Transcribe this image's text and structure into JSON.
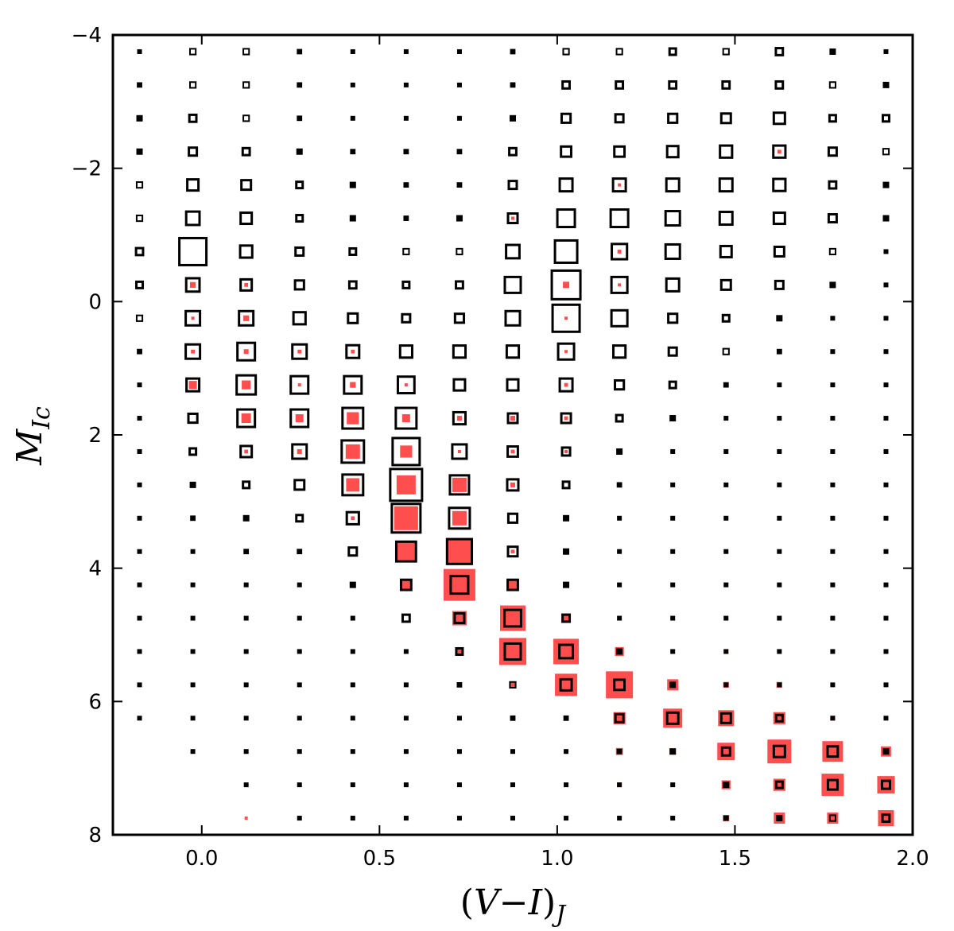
{
  "chart_data": {
    "type": "scatter",
    "subtype": "binned-square-hess-diagram",
    "title": "",
    "xlabel": {
      "open": "(",
      "var1": "V",
      "minus": "−",
      "var2": "I",
      "close": ")",
      "sub": "J"
    },
    "ylabel": {
      "main": "M",
      "sub": "Ic"
    },
    "xlim": [
      -0.25,
      2.0
    ],
    "ylim": [
      8,
      -4
    ],
    "y_inverted": true,
    "grid": false,
    "x_ticks": [
      0.0,
      0.5,
      1.0,
      1.5,
      2.0
    ],
    "x_tick_labels": [
      "0.0",
      "0.5",
      "1.0",
      "1.5",
      "2.0"
    ],
    "y_ticks": [
      -4,
      -2,
      0,
      2,
      4,
      6,
      8
    ],
    "y_tick_labels": [
      "−4",
      "−2",
      "0",
      "2",
      "4",
      "6",
      "8"
    ],
    "bin_centers_x": [
      -0.175,
      -0.025,
      0.125,
      0.275,
      0.425,
      0.575,
      0.725,
      0.875,
      1.025,
      1.175,
      1.325,
      1.475,
      1.625,
      1.775,
      1.925
    ],
    "bin_centers_y": [
      -3.75,
      -3.25,
      -2.75,
      -2.25,
      -1.75,
      -1.25,
      -0.75,
      -0.25,
      0.25,
      0.75,
      1.25,
      1.75,
      2.25,
      2.75,
      3.25,
      3.75,
      4.25,
      4.75,
      5.25,
      5.75,
      6.25,
      6.75,
      7.25,
      7.75
    ],
    "series": [
      {
        "name": "black (open squares)",
        "color": "#000000",
        "style": "open-square",
        "size_scale": "0 to 1 relative square size",
        "grid": [
          [
            0.1,
            0.18,
            0.18,
            0.12,
            0.1,
            0.1,
            0.08,
            0.12,
            0.18,
            0.18,
            0.2,
            0.18,
            0.22,
            0.15,
            0.1
          ],
          [
            0.12,
            0.18,
            0.18,
            0.12,
            0.1,
            0.08,
            0.08,
            0.12,
            0.22,
            0.22,
            0.22,
            0.22,
            0.22,
            0.18,
            0.15
          ],
          [
            0.15,
            0.22,
            0.18,
            0.12,
            0.1,
            0.1,
            0.1,
            0.15,
            0.28,
            0.25,
            0.28,
            0.3,
            0.35,
            0.2,
            0.2
          ],
          [
            0.15,
            0.25,
            0.22,
            0.15,
            0.12,
            0.12,
            0.12,
            0.22,
            0.32,
            0.32,
            0.35,
            0.38,
            0.38,
            0.25,
            0.18
          ],
          [
            0.18,
            0.35,
            0.3,
            0.2,
            0.15,
            0.12,
            0.12,
            0.25,
            0.4,
            0.4,
            0.4,
            0.4,
            0.38,
            0.22,
            0.15
          ],
          [
            0.18,
            0.42,
            0.35,
            0.2,
            0.15,
            0.12,
            0.15,
            0.3,
            0.55,
            0.55,
            0.45,
            0.4,
            0.35,
            0.25,
            0.15
          ],
          [
            0.22,
            0.85,
            0.38,
            0.25,
            0.2,
            0.18,
            0.18,
            0.42,
            0.7,
            0.48,
            0.45,
            0.35,
            0.3,
            0.18,
            0.1
          ],
          [
            0.2,
            0.42,
            0.35,
            0.28,
            0.22,
            0.2,
            0.22,
            0.5,
            0.9,
            0.5,
            0.4,
            0.3,
            0.25,
            0.15,
            0.1
          ],
          [
            0.18,
            0.45,
            0.45,
            0.38,
            0.3,
            0.25,
            0.28,
            0.45,
            0.85,
            0.5,
            0.28,
            0.2,
            0.15,
            0.1,
            0.08
          ],
          [
            0.12,
            0.45,
            0.55,
            0.45,
            0.4,
            0.38,
            0.38,
            0.38,
            0.5,
            0.38,
            0.25,
            0.18,
            0.12,
            0.08,
            0.06
          ],
          [
            0.08,
            0.4,
            0.6,
            0.55,
            0.55,
            0.52,
            0.35,
            0.35,
            0.4,
            0.28,
            0.2,
            0.12,
            0.08,
            0.06,
            0.05
          ],
          [
            0.08,
            0.28,
            0.55,
            0.55,
            0.65,
            0.65,
            0.38,
            0.3,
            0.3,
            0.2,
            0.15,
            0.1,
            0.08,
            0.06,
            0.05
          ],
          [
            0.08,
            0.2,
            0.35,
            0.45,
            0.7,
            0.85,
            0.45,
            0.32,
            0.25,
            0.15,
            0.1,
            0.08,
            0.06,
            0.05,
            0.04
          ],
          [
            0.08,
            0.15,
            0.2,
            0.3,
            0.65,
            1.0,
            0.6,
            0.35,
            0.2,
            0.12,
            0.08,
            0.06,
            0.05,
            0.04,
            0.04
          ],
          [
            0.06,
            0.12,
            0.15,
            0.2,
            0.38,
            0.9,
            0.65,
            0.28,
            0.15,
            0.1,
            0.08,
            0.06,
            0.05,
            0.04,
            0.04
          ],
          [
            0.06,
            0.1,
            0.12,
            0.12,
            0.25,
            0.62,
            0.78,
            0.3,
            0.15,
            0.1,
            0.08,
            0.06,
            0.05,
            0.04,
            0.04
          ],
          [
            0.04,
            0.08,
            0.1,
            0.1,
            0.15,
            0.32,
            0.55,
            0.32,
            0.15,
            0.1,
            0.08,
            0.06,
            0.05,
            0.04,
            0.04
          ],
          [
            0.06,
            0.08,
            0.08,
            0.08,
            0.1,
            0.22,
            0.3,
            0.52,
            0.22,
            0.1,
            0.08,
            0.06,
            0.05,
            0.04,
            0.04
          ],
          [
            0.04,
            0.06,
            0.06,
            0.06,
            0.08,
            0.1,
            0.2,
            0.5,
            0.42,
            0.15,
            0.08,
            0.06,
            0.05,
            0.04,
            0.04
          ],
          [
            0.04,
            0.06,
            0.06,
            0.06,
            0.06,
            0.1,
            0.12,
            0.18,
            0.35,
            0.32,
            0.15,
            0.1,
            0.1,
            0.06,
            0.05
          ],
          [
            0.04,
            0.04,
            0.04,
            0.04,
            0.04,
            0.06,
            0.08,
            0.12,
            0.12,
            0.25,
            0.35,
            0.3,
            0.2,
            0.1,
            0.06
          ],
          [
            0.0,
            0.04,
            0.04,
            0.04,
            0.04,
            0.06,
            0.08,
            0.08,
            0.08,
            0.12,
            0.15,
            0.25,
            0.35,
            0.32,
            0.15
          ],
          [
            0.0,
            0.0,
            0.04,
            0.04,
            0.04,
            0.04,
            0.06,
            0.06,
            0.06,
            0.08,
            0.08,
            0.15,
            0.2,
            0.3,
            0.25
          ],
          [
            0.0,
            0.0,
            0.0,
            0.04,
            0.04,
            0.04,
            0.04,
            0.04,
            0.04,
            0.04,
            0.04,
            0.12,
            0.15,
            0.18,
            0.22
          ]
        ]
      },
      {
        "name": "red (filled squares)",
        "color": "#ff4444",
        "style": "filled-square",
        "size_scale": "0 to 1 relative square size",
        "grid": [
          [
            0,
            0,
            0,
            0,
            0,
            0,
            0,
            0,
            0,
            0,
            0,
            0,
            0,
            0,
            0
          ],
          [
            0,
            0,
            0,
            0,
            0,
            0,
            0,
            0,
            0,
            0,
            0,
            0,
            0,
            0,
            0
          ],
          [
            0,
            0,
            0,
            0,
            0,
            0,
            0,
            0,
            0,
            0,
            0,
            0,
            0,
            0,
            0
          ],
          [
            0,
            0,
            0,
            0,
            0,
            0,
            0,
            0,
            0,
            0,
            0,
            0,
            0.12,
            0,
            0
          ],
          [
            0,
            0,
            0,
            0,
            0,
            0,
            0,
            0,
            0,
            0.06,
            0,
            0,
            0,
            0,
            0
          ],
          [
            0,
            0,
            0,
            0,
            0,
            0,
            0,
            0.1,
            0,
            0,
            0,
            0,
            0,
            0,
            0
          ],
          [
            0,
            0,
            0,
            0,
            0,
            0,
            0,
            0,
            0,
            0.12,
            0,
            0,
            0,
            0,
            0
          ],
          [
            0,
            0.18,
            0.12,
            0,
            0,
            0,
            0,
            0,
            0.2,
            0.06,
            0,
            0,
            0,
            0,
            0
          ],
          [
            0,
            0.06,
            0.18,
            0,
            0,
            0,
            0,
            0,
            0.06,
            0,
            0,
            0,
            0,
            0,
            0
          ],
          [
            0,
            0.12,
            0.15,
            0.12,
            0.12,
            0,
            0,
            0,
            0.08,
            0,
            0,
            0,
            0,
            0,
            0
          ],
          [
            0,
            0.25,
            0.28,
            0.1,
            0.18,
            0.1,
            0,
            0,
            0.12,
            0,
            0,
            0,
            0,
            0,
            0
          ],
          [
            0,
            0,
            0.3,
            0.25,
            0.38,
            0.25,
            0.15,
            0.15,
            0.12,
            0,
            0,
            0,
            0,
            0,
            0
          ],
          [
            0,
            0,
            0.12,
            0.15,
            0.45,
            0.38,
            0.1,
            0.12,
            0.1,
            0,
            0,
            0,
            0,
            0,
            0
          ],
          [
            0,
            0,
            0,
            0,
            0.42,
            0.6,
            0.45,
            0.15,
            0,
            0,
            0,
            0,
            0,
            0,
            0
          ],
          [
            0,
            0,
            0,
            0,
            0.12,
            0.75,
            0.45,
            0,
            0,
            0,
            0,
            0,
            0,
            0,
            0
          ],
          [
            0,
            0,
            0,
            0,
            0,
            0.65,
            0.85,
            0.12,
            0,
            0,
            0,
            0.08,
            0,
            0,
            0
          ],
          [
            0,
            0,
            0,
            0,
            0,
            0.28,
            1.0,
            0.38,
            0.18,
            0,
            0,
            0,
            0,
            0,
            0
          ],
          [
            0,
            0,
            0,
            0,
            0,
            0,
            0.45,
            0.8,
            0.3,
            0.12,
            0,
            0,
            0,
            0,
            0
          ],
          [
            0,
            0,
            0,
            0,
            0,
            0,
            0.15,
            0.85,
            0.8,
            0.28,
            0,
            0.15,
            0,
            0,
            0
          ],
          [
            0,
            0,
            0,
            0,
            0,
            0,
            0,
            0.15,
            0.7,
            0.85,
            0.35,
            0.18,
            0.18,
            0.1,
            0.06
          ],
          [
            0,
            0,
            0,
            0,
            0,
            0.08,
            0,
            0.1,
            0.15,
            0.38,
            0.6,
            0.5,
            0.38,
            0.15,
            0.1
          ],
          [
            0,
            0,
            0,
            0,
            0,
            0,
            0,
            0,
            0.1,
            0.22,
            0.2,
            0.55,
            0.75,
            0.65,
            0.32
          ],
          [
            0,
            0,
            0,
            0.1,
            0.1,
            0.06,
            0,
            0.08,
            0.06,
            0.15,
            0.1,
            0.28,
            0.38,
            0.7,
            0.55
          ],
          [
            0,
            0,
            0.08,
            0.06,
            0.08,
            0.1,
            0.08,
            0,
            0.08,
            0.06,
            0,
            0.2,
            0.35,
            0.35,
            0.5
          ]
        ]
      }
    ]
  }
}
